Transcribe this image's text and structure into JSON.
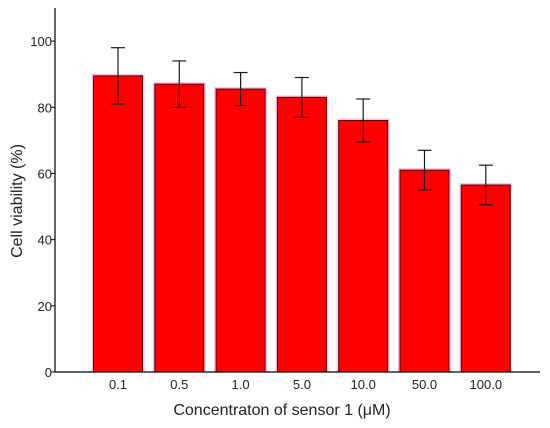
{
  "chart_data": {
    "type": "bar",
    "xlabel": "Concentraton of sensor 1 (μM)",
    "ylabel": "Cell viability (%)",
    "ylim": [
      0,
      110
    ],
    "yticks": [
      0,
      20,
      40,
      60,
      80,
      100
    ],
    "grid": false,
    "categories": [
      "0.1",
      "0.5",
      "1.0",
      "5.0",
      "10.0",
      "50.0",
      "100.0"
    ],
    "values": [
      89.5,
      87,
      85.5,
      83,
      76,
      61,
      56.5
    ],
    "errors": [
      8.5,
      7,
      5,
      6,
      6.5,
      6,
      6
    ],
    "colors": {
      "bar": "#ff0000",
      "bar_edge": "#5a0000",
      "error_bar": "#1a1a1a",
      "axis": "#000000"
    }
  }
}
